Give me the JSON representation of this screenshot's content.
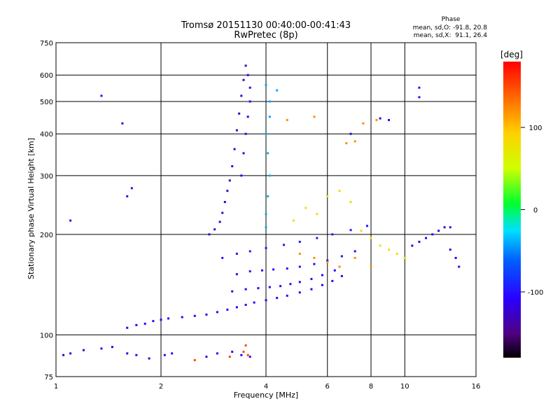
{
  "chart_data": {
    "type": "scatter",
    "title": "Tromsø 20151130 00:40:00-00:41:43",
    "subtitle": "RwPretec (8p)",
    "xlabel": "Frequency [MHz]",
    "ylabel": "Stationary phase Virtual Height [km]",
    "xscale": "log",
    "yscale": "log",
    "xlim": [
      1,
      16
    ],
    "ylim": [
      75,
      750
    ],
    "xticks": [
      1,
      2,
      4,
      6,
      8,
      10,
      16
    ],
    "yticks": [
      75,
      100,
      200,
      300,
      400,
      500,
      600,
      750
    ],
    "grid": true,
    "phase_info": {
      "heading": "Phase",
      "line_o": "mean, sd,O: -91.8, 20.8",
      "line_x": "mean, sd,X:  91.1, 26.4"
    },
    "colorbar": {
      "label": "[deg]",
      "range": [
        -180,
        180
      ],
      "ticks": [
        100,
        0,
        -100
      ],
      "colors": [
        "#000000",
        "#500080",
        "#2a00ff",
        "#0060ff",
        "#00e0ff",
        "#00ff30",
        "#d0ff00",
        "#ffd000",
        "#ff7000",
        "#ff0000"
      ],
      "stops": [
        0,
        0.08,
        0.2,
        0.33,
        0.43,
        0.52,
        0.64,
        0.76,
        0.87,
        1
      ]
    },
    "series": [
      {
        "phase": -110,
        "points": [
          [
            1.6,
            105
          ],
          [
            1.7,
            107
          ],
          [
            1.8,
            108
          ],
          [
            1.9,
            110
          ],
          [
            2.0,
            111
          ],
          [
            2.1,
            112
          ],
          [
            2.3,
            113
          ],
          [
            2.5,
            114
          ],
          [
            2.7,
            115
          ],
          [
            2.9,
            117
          ],
          [
            3.1,
            119
          ],
          [
            3.3,
            121
          ],
          [
            3.5,
            123
          ],
          [
            3.7,
            125
          ],
          [
            4.0,
            127
          ],
          [
            4.3,
            129
          ],
          [
            4.6,
            131
          ],
          [
            5.0,
            134
          ],
          [
            5.4,
            137
          ],
          [
            5.8,
            141
          ],
          [
            6.2,
            145
          ],
          [
            6.6,
            150
          ]
        ]
      },
      {
        "phase": -110,
        "points": [
          [
            3.2,
            135
          ],
          [
            3.5,
            137
          ],
          [
            3.8,
            138
          ],
          [
            4.1,
            139
          ],
          [
            4.4,
            140
          ],
          [
            4.7,
            142
          ],
          [
            5.0,
            144
          ],
          [
            5.4,
            147
          ],
          [
            5.8,
            151
          ],
          [
            6.3,
            156
          ]
        ]
      },
      {
        "phase": -100,
        "points": [
          [
            3.3,
            152
          ],
          [
            3.6,
            155
          ],
          [
            3.9,
            156
          ],
          [
            4.2,
            157
          ],
          [
            4.6,
            158
          ],
          [
            5.0,
            160
          ],
          [
            5.5,
            163
          ],
          [
            6.0,
            167
          ],
          [
            6.6,
            172
          ],
          [
            7.2,
            178
          ]
        ]
      },
      {
        "phase": -95,
        "points": [
          [
            3.0,
            170
          ],
          [
            3.3,
            175
          ],
          [
            3.6,
            178
          ],
          [
            4.0,
            182
          ],
          [
            4.5,
            186
          ],
          [
            5.0,
            190
          ],
          [
            5.6,
            195
          ],
          [
            6.2,
            200
          ],
          [
            7.0,
            206
          ],
          [
            7.8,
            212
          ]
        ]
      },
      {
        "phase": -125,
        "points": [
          [
            2.75,
            200
          ],
          [
            2.85,
            207
          ],
          [
            2.95,
            218
          ],
          [
            3.0,
            232
          ],
          [
            3.05,
            250
          ],
          [
            3.1,
            270
          ],
          [
            3.15,
            290
          ],
          [
            3.2,
            320
          ],
          [
            3.25,
            360
          ],
          [
            3.3,
            410
          ],
          [
            3.35,
            460
          ],
          [
            3.4,
            520
          ],
          [
            3.45,
            580
          ],
          [
            3.5,
            640
          ]
        ]
      },
      {
        "phase": -110,
        "points": [
          [
            3.4,
            300
          ],
          [
            3.45,
            350
          ],
          [
            3.5,
            400
          ],
          [
            3.55,
            450
          ],
          [
            3.6,
            500
          ],
          [
            3.6,
            550
          ],
          [
            3.55,
            600
          ]
        ]
      },
      {
        "phase": -40,
        "points": [
          [
            4.0,
            210
          ],
          [
            4.0,
            230
          ],
          [
            4.05,
            260
          ],
          [
            4.1,
            300
          ],
          [
            4.05,
            350
          ],
          [
            4.0,
            400
          ],
          [
            4.1,
            450
          ],
          [
            4.1,
            500
          ],
          [
            4.0,
            560
          ],
          [
            4.3,
            540
          ]
        ]
      },
      {
        "phase": 80,
        "points": [
          [
            4.8,
            220
          ],
          [
            5.2,
            240
          ],
          [
            5.6,
            230
          ],
          [
            6.0,
            260
          ],
          [
            6.5,
            270
          ],
          [
            7.0,
            250
          ],
          [
            7.5,
            205
          ],
          [
            8.0,
            195
          ],
          [
            8.5,
            185
          ],
          [
            9.0,
            180
          ],
          [
            9.5,
            175
          ],
          [
            10.0,
            170
          ]
        ]
      },
      {
        "phase": 120,
        "points": [
          [
            5.0,
            175
          ],
          [
            5.5,
            170
          ],
          [
            6.0,
            165
          ],
          [
            6.5,
            160
          ],
          [
            7.2,
            170
          ],
          [
            8.0,
            160
          ],
          [
            6.8,
            375
          ],
          [
            7.2,
            380
          ],
          [
            8.3,
            440
          ],
          [
            7.6,
            430
          ],
          [
            5.5,
            450
          ],
          [
            4.6,
            440
          ]
        ]
      },
      {
        "phase": -115,
        "points": [
          [
            10.5,
            185
          ],
          [
            11.0,
            190
          ],
          [
            11.5,
            195
          ],
          [
            12.0,
            200
          ],
          [
            12.5,
            205
          ],
          [
            13.0,
            210
          ],
          [
            13.5,
            180
          ],
          [
            14.0,
            170
          ],
          [
            14.3,
            160
          ],
          [
            9.0,
            440
          ],
          [
            8.5,
            445
          ],
          [
            7.0,
            400
          ]
        ]
      },
      {
        "phase": -115,
        "points": [
          [
            1.05,
            87
          ],
          [
            1.1,
            88
          ],
          [
            1.2,
            90
          ],
          [
            1.35,
            91
          ],
          [
            1.45,
            92
          ],
          [
            1.6,
            88
          ],
          [
            1.7,
            87
          ],
          [
            1.85,
            85
          ],
          [
            2.05,
            87
          ],
          [
            2.15,
            88
          ],
          [
            2.7,
            86
          ],
          [
            2.9,
            88
          ],
          [
            3.2,
            89
          ],
          [
            3.4,
            87
          ],
          [
            3.6,
            86
          ]
        ]
      },
      {
        "phase": 150,
        "points": [
          [
            3.45,
            89
          ],
          [
            3.5,
            93
          ],
          [
            3.55,
            87
          ],
          [
            2.5,
            84
          ],
          [
            3.15,
            86
          ]
        ]
      },
      {
        "phase": -100,
        "points": [
          [
            1.35,
            520
          ],
          [
            1.55,
            430
          ],
          [
            1.1,
            220
          ],
          [
            1.6,
            260
          ],
          [
            1.65,
            275
          ],
          [
            11.0,
            515
          ],
          [
            11.0,
            550
          ],
          [
            13.5,
            210
          ]
        ]
      }
    ]
  }
}
